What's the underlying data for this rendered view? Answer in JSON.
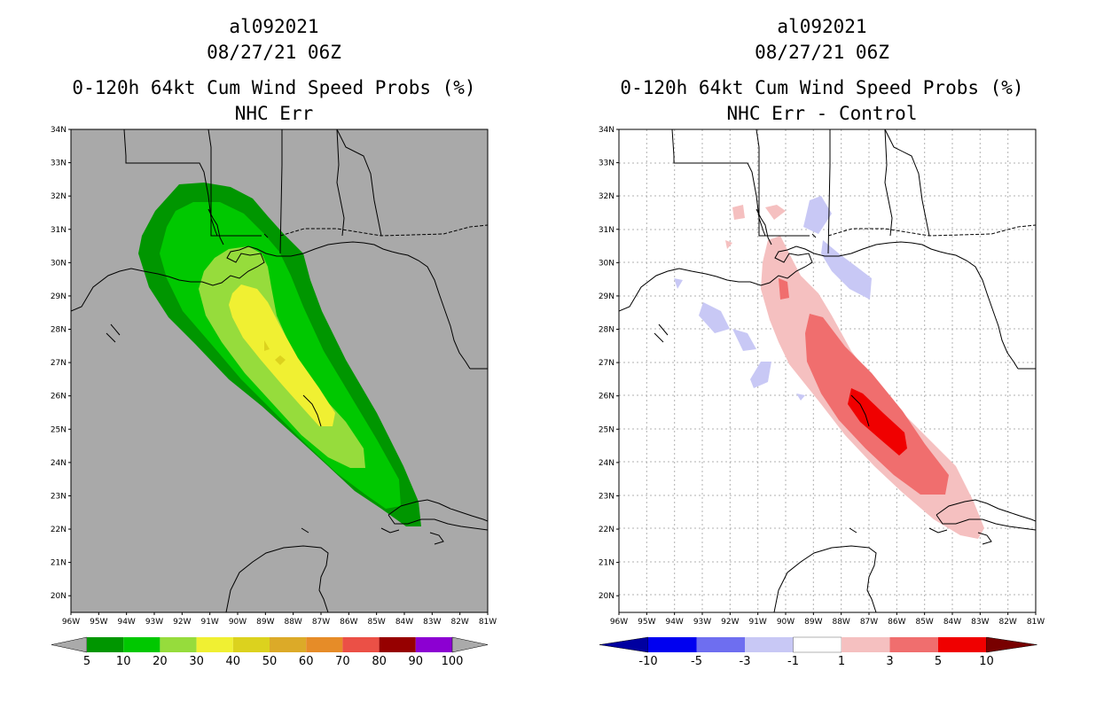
{
  "left_panel": {
    "header": {
      "storm_id": "al092021",
      "datetime": "08/27/21 06Z",
      "product": "0-120h 64kt Cum Wind Speed Probs (%)",
      "subtitle": "NHC Err"
    },
    "colorbar": {
      "labels": [
        "5",
        "10",
        "20",
        "30",
        "40",
        "50",
        "60",
        "70",
        "80",
        "90",
        "100"
      ],
      "colors": [
        "#009600",
        "#00c800",
        "#96dc3c",
        "#f0f032",
        "#dcd21e",
        "#dcaa28",
        "#e68c28",
        "#eb5046",
        "#960000",
        "#8c00d2",
        "#aaaaaa"
      ]
    },
    "colors": {
      "ocean_land": "#a9a9a9"
    }
  },
  "right_panel": {
    "header": {
      "storm_id": "al092021",
      "datetime": "08/27/21 06Z",
      "product": "0-120h 64kt Cum Wind Speed Probs (%)",
      "subtitle": "NHC Err - Control"
    },
    "colorbar": {
      "labels": [
        "-10",
        "-5",
        "-3",
        "-1",
        "1",
        "3",
        "5",
        "10"
      ],
      "colors": [
        "#0000a0",
        "#0000f0",
        "#6e6ef0",
        "#c8c8f5",
        "#ffffff",
        "#f5c0c0",
        "#f06e6e",
        "#f00000",
        "#780000"
      ]
    }
  },
  "axes": {
    "lat_labels": [
      "34N",
      "33N",
      "32N",
      "31N",
      "30N",
      "29N",
      "28N",
      "27N",
      "26N",
      "25N",
      "24N",
      "23N",
      "22N",
      "21N",
      "20N"
    ],
    "lon_labels": [
      "96W",
      "95W",
      "94W",
      "93W",
      "92W",
      "91W",
      "90W",
      "89W",
      "88W",
      "87W",
      "86W",
      "85W",
      "84W",
      "83W",
      "82W",
      "81W"
    ]
  }
}
